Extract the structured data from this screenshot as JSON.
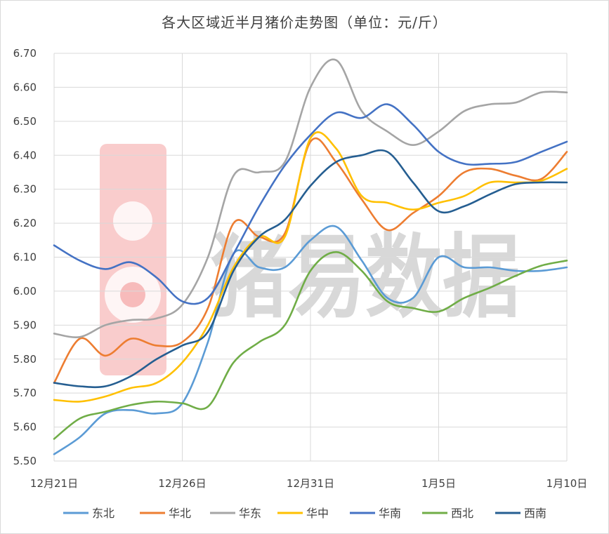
{
  "chart_data": {
    "type": "line",
    "title": "各大区域近半月猪价走势图（单位：元/斤）",
    "watermark": "猪易数据",
    "ylim": [
      5.5,
      6.7
    ],
    "y_ticks": [
      "6.70",
      "6.60",
      "6.50",
      "6.40",
      "6.30",
      "6.20",
      "6.10",
      "6.00",
      "5.90",
      "5.80",
      "5.70",
      "5.60",
      "5.50"
    ],
    "y_tick_values": [
      6.7,
      6.6,
      6.5,
      6.4,
      6.3,
      6.2,
      6.1,
      6.0,
      5.9,
      5.8,
      5.7,
      5.6,
      5.5
    ],
    "x": [
      "12月21日",
      "12月22日",
      "12月23日",
      "12月24日",
      "12月25日",
      "12月26日",
      "12月27日",
      "12月28日",
      "12月29日",
      "12月30日",
      "12月31日",
      "1月1日",
      "1月2日",
      "1月3日",
      "1月4日",
      "1月5日",
      "1月6日",
      "1月7日",
      "1月8日",
      "1月9日",
      "1月10日"
    ],
    "x_tick_labels": [
      {
        "index": 0,
        "label": "12月21日"
      },
      {
        "index": 5,
        "label": "12月26日"
      },
      {
        "index": 10,
        "label": "12月31日"
      },
      {
        "index": 15,
        "label": "1月5日"
      },
      {
        "index": 20,
        "label": "1月10日"
      }
    ],
    "grid": true,
    "legend_position": "bottom",
    "series": [
      {
        "name": "东北",
        "color": "#5b9bd5",
        "values": [
          5.52,
          5.57,
          5.64,
          5.65,
          5.64,
          5.67,
          5.85,
          6.11,
          6.07,
          6.07,
          6.15,
          6.19,
          6.09,
          5.98,
          5.98,
          6.1,
          6.07,
          6.07,
          6.06,
          6.06,
          6.07
        ]
      },
      {
        "name": "华北",
        "color": "#ed7d31",
        "values": [
          5.73,
          5.86,
          5.81,
          5.86,
          5.84,
          5.85,
          5.95,
          6.2,
          6.16,
          6.17,
          6.44,
          6.38,
          6.27,
          6.18,
          6.23,
          6.28,
          6.35,
          6.36,
          6.34,
          6.33,
          6.41
        ]
      },
      {
        "name": "华东",
        "color": "#a5a5a5",
        "values": [
          5.875,
          5.865,
          5.9,
          5.915,
          5.92,
          5.96,
          6.1,
          6.34,
          6.35,
          6.38,
          6.6,
          6.68,
          6.53,
          6.47,
          6.43,
          6.47,
          6.53,
          6.55,
          6.555,
          6.585,
          6.585
        ]
      },
      {
        "name": "华中",
        "color": "#ffc000",
        "values": [
          5.68,
          5.675,
          5.69,
          5.715,
          5.73,
          5.79,
          5.9,
          6.07,
          6.16,
          6.16,
          6.45,
          6.42,
          6.28,
          6.26,
          6.24,
          6.26,
          6.28,
          6.32,
          6.32,
          6.325,
          6.36
        ]
      },
      {
        "name": "华南",
        "color": "#4472c4",
        "values": [
          6.135,
          6.09,
          6.065,
          6.085,
          6.04,
          5.97,
          5.98,
          6.11,
          6.25,
          6.37,
          6.46,
          6.525,
          6.51,
          6.55,
          6.49,
          6.41,
          6.375,
          6.375,
          6.38,
          6.41,
          6.44
        ]
      },
      {
        "name": "西北",
        "color": "#70ad47",
        "values": [
          5.565,
          5.625,
          5.645,
          5.665,
          5.675,
          5.67,
          5.66,
          5.79,
          5.85,
          5.9,
          6.06,
          6.115,
          6.06,
          5.97,
          5.95,
          5.94,
          5.98,
          6.01,
          6.045,
          6.075,
          6.09
        ]
      },
      {
        "name": "西南",
        "color": "#255e91",
        "values": [
          5.73,
          5.72,
          5.72,
          5.75,
          5.8,
          5.84,
          5.88,
          6.06,
          6.16,
          6.21,
          6.31,
          6.38,
          6.4,
          6.41,
          6.32,
          6.235,
          6.25,
          6.285,
          6.315,
          6.32,
          6.32
        ]
      }
    ]
  }
}
